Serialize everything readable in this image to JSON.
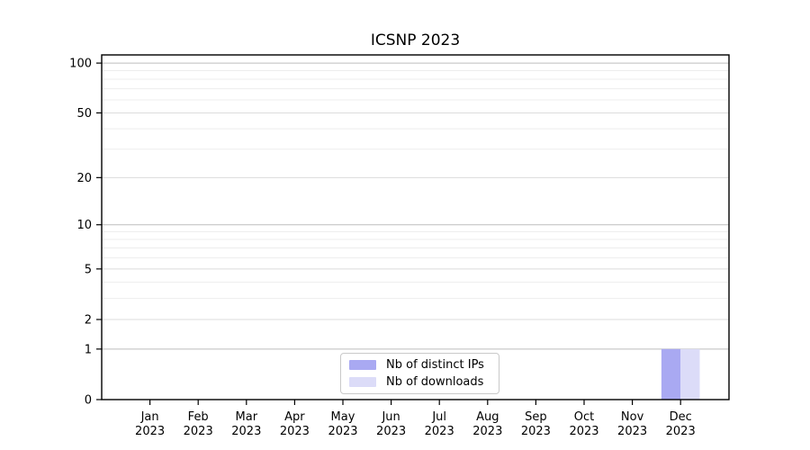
{
  "chart_data": {
    "type": "bar",
    "title": "ICSNP 2023",
    "x": {
      "months": [
        "Jan",
        "Feb",
        "Mar",
        "Apr",
        "May",
        "Jun",
        "Jul",
        "Aug",
        "Sep",
        "Oct",
        "Nov",
        "Dec"
      ],
      "years": [
        "2023",
        "2023",
        "2023",
        "2023",
        "2023",
        "2023",
        "2023",
        "2023",
        "2023",
        "2023",
        "2023",
        "2023"
      ]
    },
    "series": [
      {
        "name": "Nb of distinct IPs",
        "color": "#a9a9f2",
        "values": [
          0,
          0,
          0,
          0,
          0,
          0,
          0,
          0,
          0,
          0,
          0,
          1
        ]
      },
      {
        "name": "Nb of downloads",
        "color": "#dcdcf8",
        "values": [
          0,
          0,
          0,
          0,
          0,
          0,
          0,
          0,
          0,
          0,
          0,
          1
        ]
      }
    ],
    "yscale": "log1p",
    "ylim": [
      0,
      112
    ],
    "yticks": [
      0,
      1,
      2,
      5,
      10,
      20,
      50,
      100
    ],
    "yticks_minor": [
      3,
      4,
      6,
      7,
      8,
      9,
      30,
      40,
      60,
      70,
      80,
      90,
      110
    ],
    "grid": {
      "decade_line_color": "#bdbdbd",
      "major_line_color": "#dcdcdc",
      "minor_line_color": "#ededed"
    },
    "axis_color": "#000000",
    "legend_position": "lower center inside plot"
  }
}
